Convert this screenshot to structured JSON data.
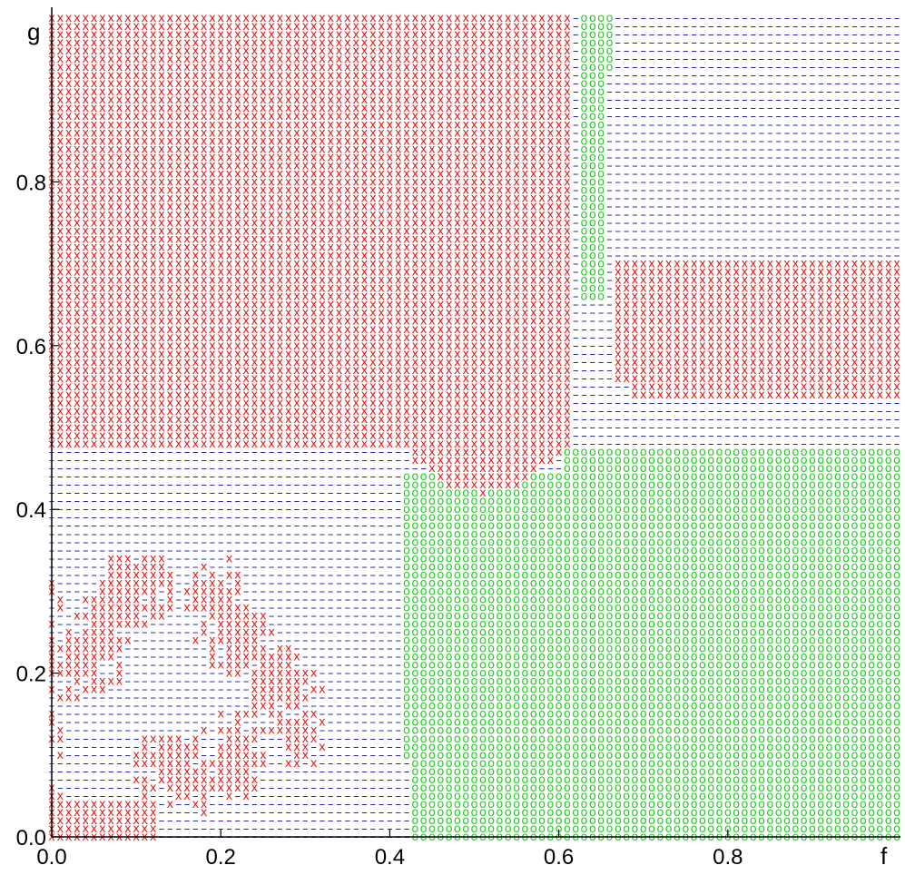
{
  "chart_data": {
    "type": "scatter",
    "xlabel": "f",
    "ylabel": "g",
    "xlim": [
      0,
      1
    ],
    "ylim": [
      0,
      1
    ],
    "x_ticks": [
      {
        "value": 0.0,
        "label": "0.0"
      },
      {
        "value": 0.2,
        "label": "0.2"
      },
      {
        "value": 0.4,
        "label": "0.4"
      },
      {
        "value": 0.6,
        "label": "0.6"
      },
      {
        "value": 0.8,
        "label": "0.8"
      }
    ],
    "y_ticks": [
      {
        "value": 0.0,
        "label": "0.0"
      },
      {
        "value": 0.2,
        "label": "0.2"
      },
      {
        "value": 0.4,
        "label": "0.4"
      },
      {
        "value": 0.6,
        "label": "0.6"
      },
      {
        "value": 0.8,
        "label": "0.8"
      }
    ],
    "grid_step": 0.01,
    "series": [
      {
        "symbol": "x",
        "color": "#e02020"
      },
      {
        "symbol": "–",
        "color": "#1a1aa6"
      },
      {
        "symbol": "o",
        "color": "#22cc22"
      }
    ],
    "grid": false,
    "legend": "none"
  }
}
